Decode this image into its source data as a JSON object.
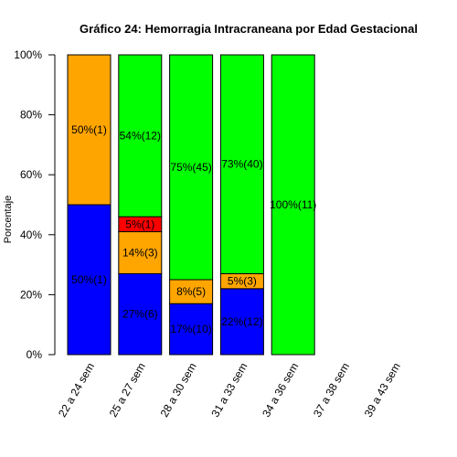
{
  "chart_data": {
    "type": "bar",
    "stacked": true,
    "title": "Gráfico 24: Hemorragia Intracraneana por Edad Gestacional",
    "xlabel": "",
    "ylabel": "Porcentaje",
    "ylim": [
      0,
      100
    ],
    "y_ticks": [
      "0%",
      "20%",
      "40%",
      "60%",
      "80%",
      "100%"
    ],
    "categories": [
      "22 a 24 sem",
      "25 a 27 sem",
      "28 a 30 sem",
      "31 a 33 sem",
      "34 a 36 sem",
      "37 a 38 sem",
      "39 a 43 sem"
    ],
    "series": [
      {
        "color": "#0000ff",
        "values": [
          50,
          27,
          17,
          22,
          0,
          0,
          0
        ],
        "labels": [
          "50%(1)",
          "27%(6)",
          "17%(10)",
          "22%(12)",
          "",
          "",
          ""
        ]
      },
      {
        "color": "#ffa500",
        "values": [
          50,
          14,
          8,
          5,
          0,
          0,
          0
        ],
        "labels": [
          "50%(1)",
          "14%(3)",
          "8%(5)",
          "5%(3)",
          "",
          "",
          ""
        ]
      },
      {
        "color": "#ff0000",
        "values": [
          0,
          5,
          0,
          0,
          0,
          0,
          0
        ],
        "labels": [
          "",
          "5%(1)",
          "",
          "",
          "",
          "",
          ""
        ]
      },
      {
        "color": "#00ff00",
        "values": [
          0,
          54,
          75,
          73,
          100,
          0,
          0
        ],
        "labels": [
          "",
          "54%(12)",
          "75%(45)",
          "73%(40)",
          "100%(11)",
          "",
          ""
        ]
      }
    ],
    "grid": false,
    "legend": "none"
  }
}
